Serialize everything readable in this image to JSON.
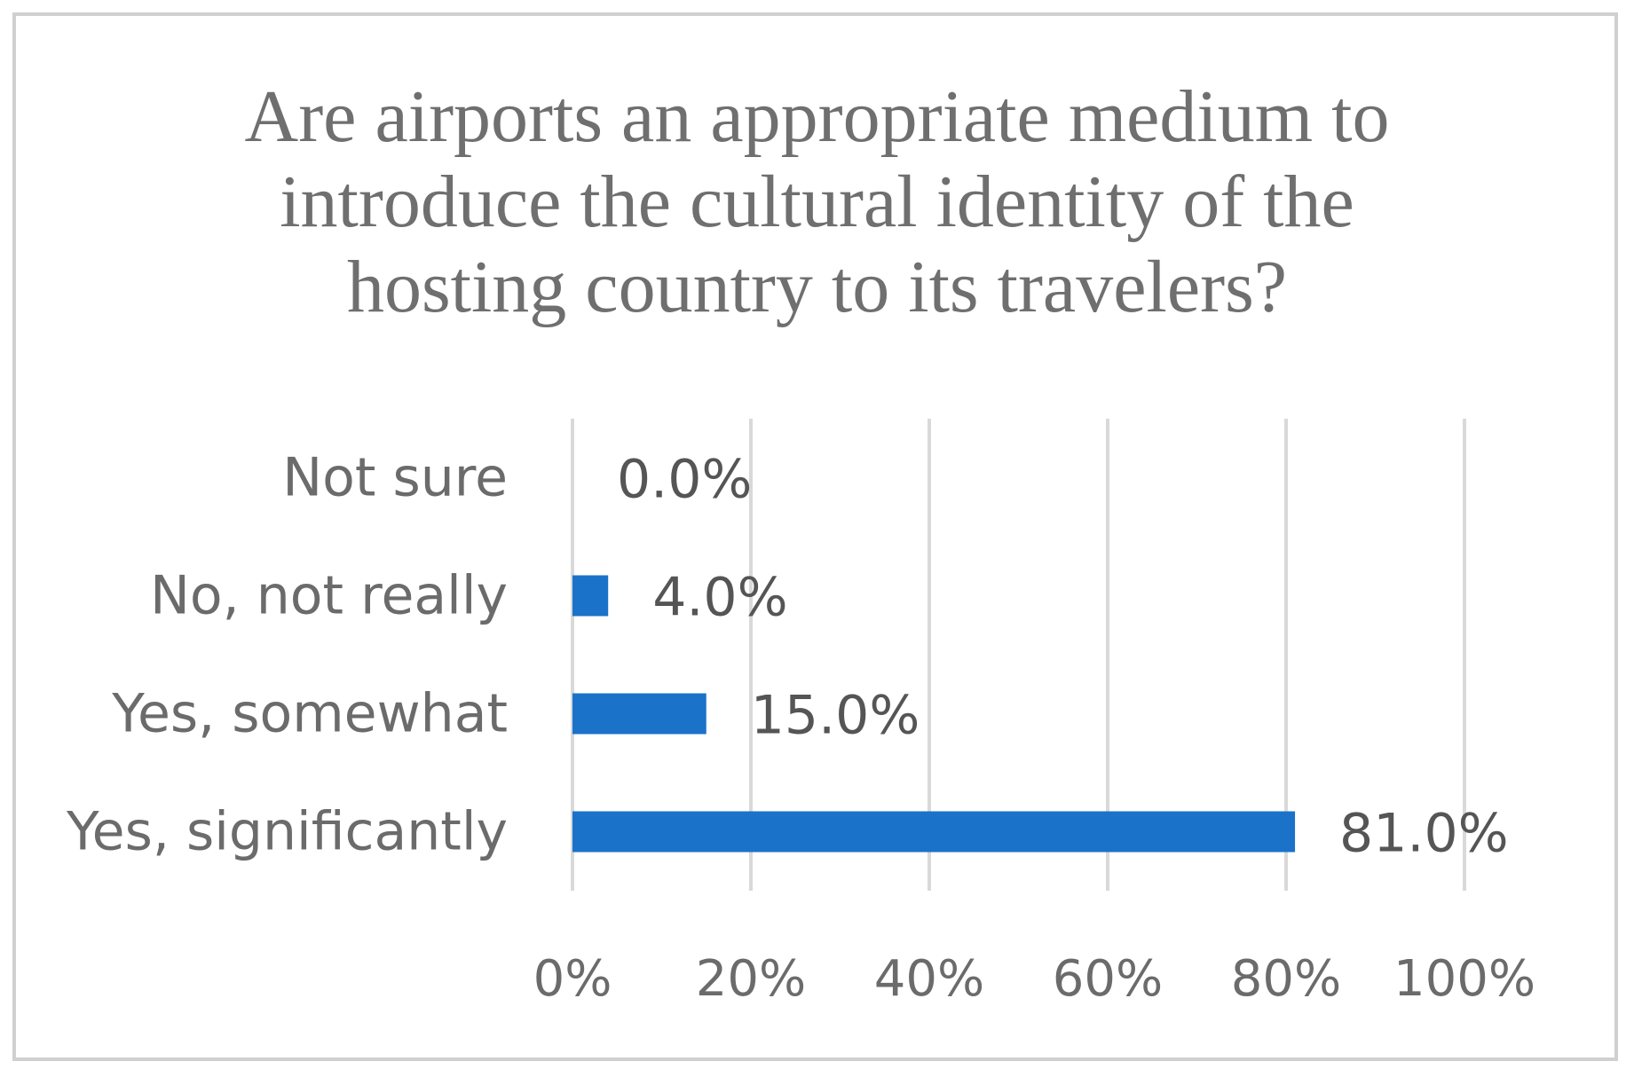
{
  "chart_data": {
    "type": "bar",
    "orientation": "horizontal",
    "title_lines": [
      "Are airports an appropriate medium to",
      "introduce the cultural identity of the",
      "hosting country to its travelers?"
    ],
    "categories": [
      "Not sure",
      "No, not really",
      "Yes, somewhat",
      "Yes, significantly"
    ],
    "values": [
      0.0,
      4.0,
      15.0,
      81.0
    ],
    "data_labels": [
      "0.0%",
      "4.0%",
      "15.0%",
      "81.0%"
    ],
    "xlim": [
      0,
      100
    ],
    "x_ticks": [
      0,
      20,
      40,
      60,
      80,
      100
    ],
    "x_tick_labels": [
      "0%",
      "20%",
      "40%",
      "60%",
      "80%",
      "100%"
    ],
    "grid": "vertical",
    "legend": "none",
    "colors": {
      "bar": "#1b72c9",
      "grid": "#d9d9d9",
      "text": "#6b6b6b",
      "border": "#d0d0d0"
    }
  }
}
